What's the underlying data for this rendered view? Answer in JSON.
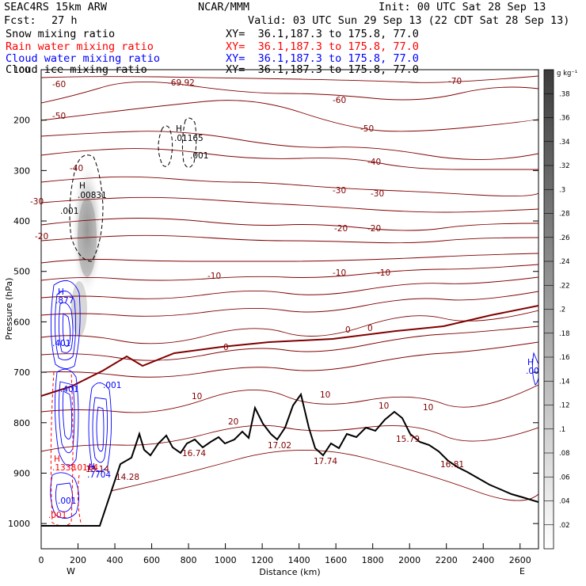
{
  "header": {
    "model": "SEAC4RS 15km ARW",
    "center": "NCAR/MMM",
    "init": "Init: 00 UTC Sat 28 Sep 13",
    "fcst_label": "Fcst:",
    "fcst_value": "27 h",
    "valid": "Valid: 03 UTC Sun 29 Sep 13 (22 CDT Sat 28 Sep 13)",
    "fields": [
      {
        "name": "Snow mixing ratio",
        "xy": "XY=  36.1,187.3 to 175.8, 77.0",
        "color": "#000000"
      },
      {
        "name": "Rain water mixing ratio",
        "xy": "XY=  36.1,187.3 to 175.8, 77.0",
        "color": "#ff0000"
      },
      {
        "name": "Cloud water mixing ratio",
        "xy": "XY=  36.1,187.3 to 175.8, 77.0",
        "color": "#0000ff"
      },
      {
        "name": "Cloud ice mixing ratio",
        "xy": "XY=  36.1,187.3 to 175.8, 77.0",
        "color": "#000000"
      }
    ]
  },
  "chart_data": {
    "type": "cross-section",
    "xlabel": "Distance (km)",
    "ylabel": "Pressure (hPa)",
    "xlim": [
      0,
      2700
    ],
    "ylim": [
      1050,
      100
    ],
    "x_ticks": [
      "0",
      "200",
      "400",
      "600",
      "800",
      "1000",
      "1200",
      "1400",
      "1600",
      "1800",
      "2000",
      "2200",
      "2400",
      "2600"
    ],
    "y_ticks": [
      "100",
      "200",
      "300",
      "400",
      "500",
      "600",
      "700",
      "800",
      "900",
      "1000"
    ],
    "end_labels": {
      "west": "W",
      "east": "E"
    },
    "colorbar": {
      "unit": "g kg⁻¹",
      "levels": [
        ".02",
        ".04",
        ".06",
        ".08",
        ".1",
        ".12",
        ".14",
        ".16",
        ".18",
        ".2",
        ".22",
        ".24",
        ".26",
        ".28",
        ".3",
        ".32",
        ".34",
        ".36",
        ".38"
      ]
    },
    "temperature_contours": {
      "color": "#800000",
      "levels": [
        -70,
        -60,
        -50,
        -40,
        -30,
        -20,
        -10,
        0,
        10,
        20
      ],
      "labels": [
        "-60",
        "-69.92",
        "-70",
        "-50",
        "-60",
        "-50",
        "-40",
        "-40",
        "-30",
        "-30",
        "-30",
        "-20",
        "-20",
        "-20",
        "-10",
        "-10",
        "-10",
        "0",
        "0",
        "0",
        "10",
        "10",
        "10",
        "10",
        "20",
        "14.28",
        "16.74",
        "17.02",
        "17.74",
        "15.79",
        "16.81",
        "18.14"
      ]
    },
    "terrain_profile": [
      [
        0,
        1005
      ],
      [
        150,
        1005
      ],
      [
        300,
        955
      ],
      [
        350,
        890
      ],
      [
        420,
        858
      ],
      [
        470,
        845
      ],
      [
        520,
        880
      ],
      [
        570,
        855
      ],
      [
        610,
        830
      ],
      [
        650,
        848
      ],
      [
        700,
        832
      ],
      [
        750,
        840
      ],
      [
        800,
        825
      ],
      [
        840,
        838
      ],
      [
        900,
        830
      ],
      [
        950,
        845
      ],
      [
        1000,
        825
      ],
      [
        1040,
        838
      ],
      [
        1080,
        818
      ],
      [
        1120,
        812
      ],
      [
        1150,
        825
      ],
      [
        1200,
        848
      ],
      [
        1240,
        858
      ],
      [
        1270,
        830
      ],
      [
        1310,
        842
      ],
      [
        1350,
        800
      ],
      [
        1390,
        760
      ],
      [
        1420,
        800
      ],
      [
        1460,
        855
      ],
      [
        1500,
        878
      ],
      [
        1540,
        848
      ],
      [
        1580,
        858
      ],
      [
        1620,
        838
      ],
      [
        1680,
        845
      ],
      [
        1720,
        828
      ],
      [
        1780,
        840
      ],
      [
        1820,
        820
      ],
      [
        1850,
        830
      ],
      [
        1900,
        802
      ],
      [
        1950,
        822
      ],
      [
        2000,
        840
      ],
      [
        2050,
        828
      ],
      [
        2100,
        842
      ],
      [
        2150,
        850
      ],
      [
        2200,
        870
      ],
      [
        2260,
        888
      ],
      [
        2320,
        895
      ],
      [
        2380,
        908
      ],
      [
        2450,
        935
      ],
      [
        2500,
        958
      ],
      [
        2560,
        975
      ],
      [
        2620,
        988
      ],
      [
        2680,
        1000
      ]
    ],
    "maxima": [
      {
        "field": "snow",
        "value": "H\n.00831",
        "x": 220,
        "p": 373
      },
      {
        "field": "cloud-ice",
        "value": "H\n.01165",
        "x": 780,
        "p": 230
      },
      {
        "field": "cloud-water",
        "value": "H\n.877",
        "x": 110,
        "p": 570
      },
      {
        "field": "rain",
        "value": "H\n.1338",
        "x": 90,
        "p": 910
      },
      {
        "field": "rain",
        "value": "H\n.0164",
        "x": 210,
        "p": 912
      },
      {
        "field": "cloud-water",
        "value": "H\n.7704",
        "x": 300,
        "p": 905
      }
    ],
    "contour_labels": {
      "snow_min": ".001",
      "ice_min": ".001",
      "water_values": [
        ".401",
        ".401",
        ".001",
        ".001",
        ".00"
      ],
      "rain_min": ".001"
    }
  }
}
